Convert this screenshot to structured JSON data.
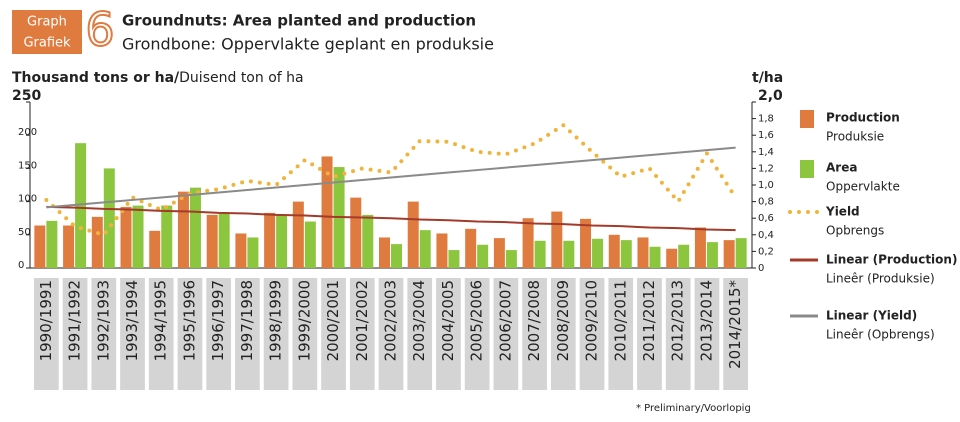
{
  "chart_data": {
    "type": "bar",
    "badge": {
      "en": "Graph",
      "af": "Grafiek",
      "number": "6"
    },
    "title": "Groundnuts: Area planted and production",
    "subtitle": "Grondbone: Oppervlakte geplant en produksie",
    "y_label_en": "Thousand tons or ha/",
    "y_label_af": "Duisend ton of ha",
    "y2_label": "t/ha",
    "footnote": "* Preliminary/Voorlopig",
    "categories": [
      "1990/1991",
      "1991/1992",
      "1992/1993",
      "1993/1994",
      "1994/1995",
      "1995/1996",
      "1996/1997",
      "1997/1998",
      "1998/1999",
      "1999/2000",
      "2000/2001",
      "2001/2002",
      "2002/2003",
      "2003/2004",
      "2004/2005",
      "2005/2006",
      "2006/2007",
      "2007/2008",
      "2008/2009",
      "2009/2010",
      "2010/2011",
      "2011/2012",
      "2012/2013",
      "2013/2014",
      "2014/2015*"
    ],
    "ylim": [
      0,
      250
    ],
    "yticks": [
      0,
      50,
      100,
      150,
      200,
      250
    ],
    "y2lim": [
      0,
      2.0
    ],
    "y2ticks": [
      0,
      {
        "value": 0.2,
        "label": "0,2"
      },
      {
        "value": 0.4,
        "label": "0,4"
      },
      {
        "value": 0.6,
        "label": "0,6"
      },
      {
        "value": 0.8,
        "label": "0,8"
      },
      {
        "value": 1.0,
        "label": "1,0"
      },
      {
        "value": 1.2,
        "label": "1,2"
      },
      {
        "value": 1.4,
        "label": "1,4"
      },
      {
        "value": 1.6,
        "label": "1,6"
      },
      {
        "value": 1.8,
        "label": "1,8"
      },
      {
        "value": 2.0,
        "label": "2,0"
      }
    ],
    "series": [
      {
        "name": "Production",
        "name_af": "Produksie",
        "kind": "bar",
        "color": "#e07b3f",
        "values": [
          64,
          64,
          77,
          92,
          56,
          115,
          80,
          52,
          83,
          100,
          168,
          106,
          46,
          100,
          52,
          59,
          45,
          75,
          85,
          74,
          50,
          46,
          29,
          61,
          42
        ]
      },
      {
        "name": "Area",
        "name_af": "Oppervlakte",
        "kind": "bar",
        "color": "#8cc63f",
        "values": [
          71,
          188,
          150,
          94,
          94,
          121,
          82,
          46,
          80,
          70,
          152,
          80,
          36,
          57,
          27,
          35,
          27,
          41,
          41,
          44,
          42,
          32,
          35,
          39,
          45
        ]
      },
      {
        "name": "Yield",
        "name_af": "Opbrengs",
        "kind": "dots",
        "axis": "y2",
        "color": "#f0b43c",
        "values": [
          0.82,
          0.5,
          0.4,
          0.85,
          0.7,
          0.9,
          0.95,
          1.05,
          1.0,
          1.3,
          1.1,
          1.2,
          1.15,
          1.53,
          1.52,
          1.4,
          1.37,
          1.5,
          1.72,
          1.4,
          1.1,
          1.2,
          0.8,
          1.38,
          0.85
        ]
      },
      {
        "name": "Linear (Production)",
        "name_af": "Lineêr (Produksie)",
        "kind": "line",
        "color": "#a33a2a",
        "values": [
          92,
          91,
          89,
          88,
          86,
          85,
          83,
          82,
          80,
          79,
          77,
          76,
          75,
          73,
          72,
          70,
          69,
          67,
          66,
          64,
          63,
          61,
          60,
          58,
          57
        ]
      },
      {
        "name": "Linear (Yield)",
        "name_af": "Lineêr (Opbrengs)",
        "kind": "line",
        "axis": "y2",
        "color": "#8a8a8a",
        "values": [
          0.73,
          0.76,
          0.79,
          0.82,
          0.85,
          0.88,
          0.91,
          0.94,
          0.97,
          1.0,
          1.03,
          1.06,
          1.09,
          1.12,
          1.15,
          1.18,
          1.21,
          1.24,
          1.27,
          1.3,
          1.33,
          1.36,
          1.39,
          1.42,
          1.45
        ]
      }
    ]
  }
}
